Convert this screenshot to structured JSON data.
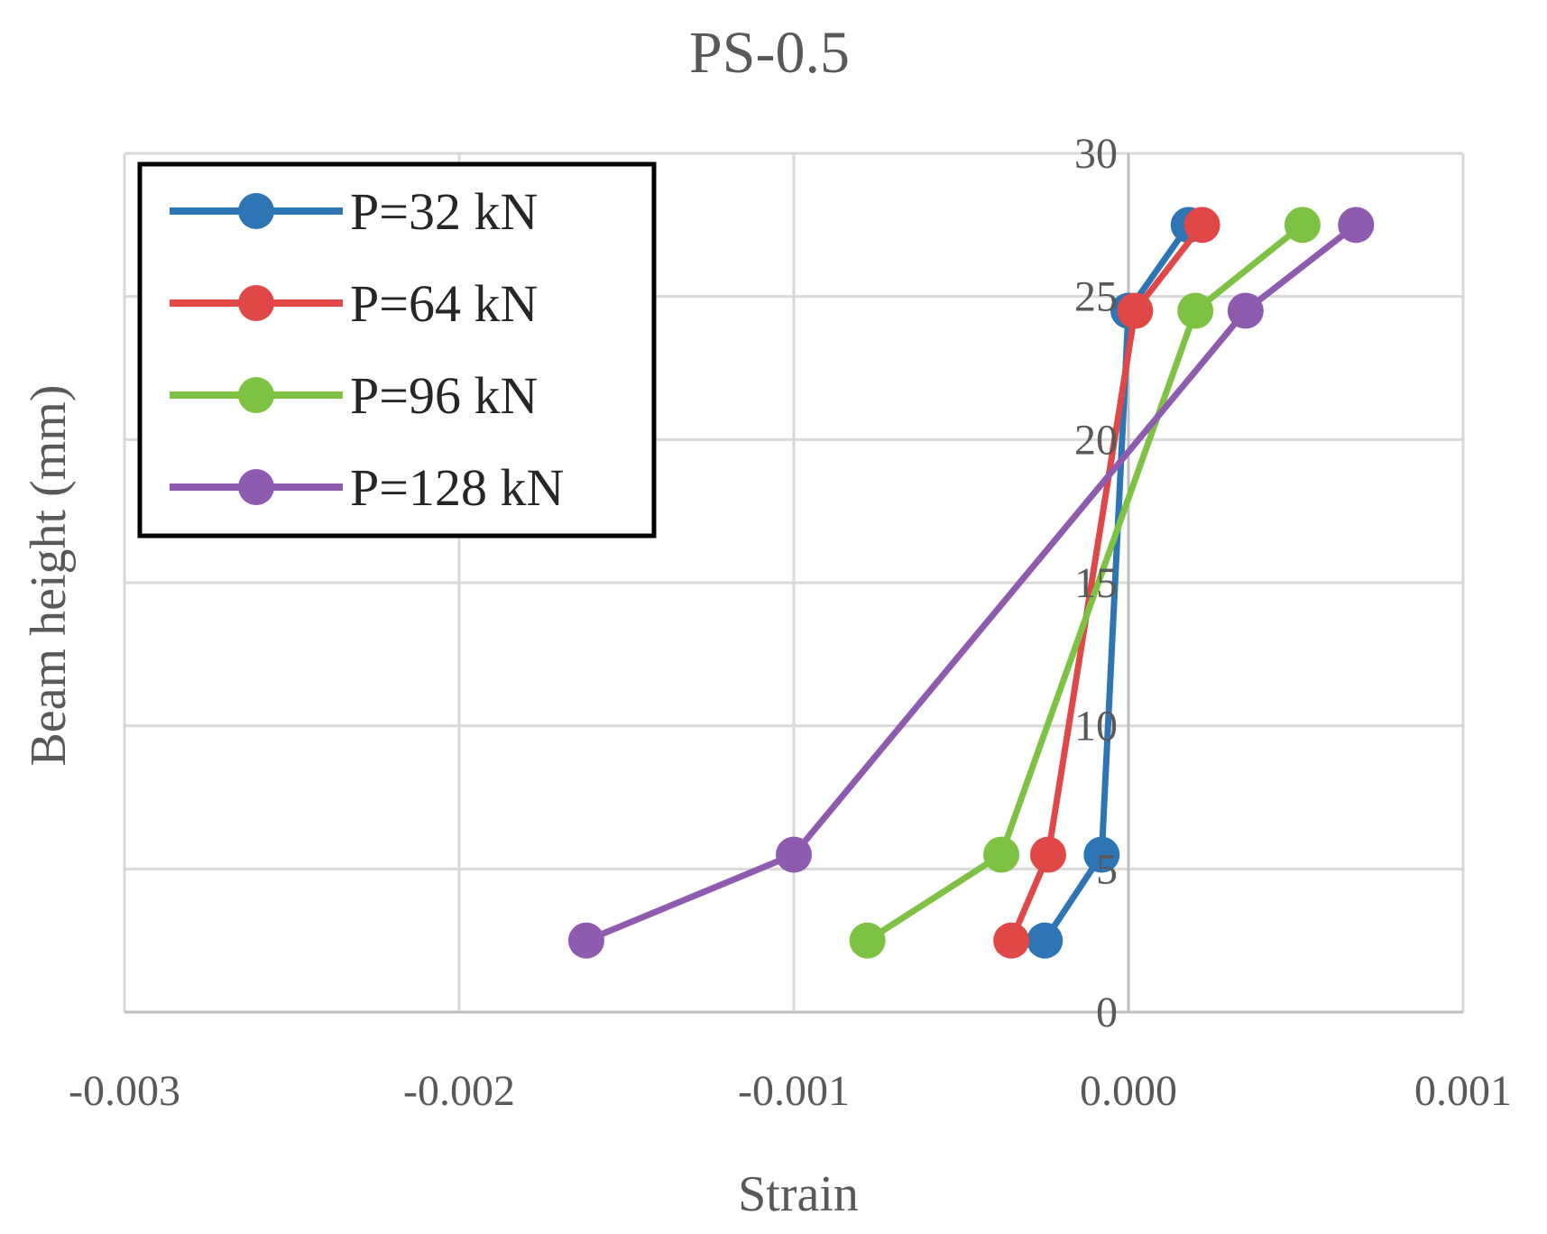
{
  "chart_data": {
    "type": "line",
    "title": "PS-0.5",
    "xlabel": "Strain",
    "ylabel": "Beam height (mm)",
    "xlim": [
      -0.003,
      0.001
    ],
    "ylim": [
      0,
      30
    ],
    "xticks": [
      -0.003,
      -0.002,
      -0.001,
      0.0,
      0.001
    ],
    "xtick_labels": [
      "-0.003",
      "-0.002",
      "-0.001",
      "0.000",
      "0.001"
    ],
    "yticks": [
      0,
      5,
      10,
      15,
      20,
      25,
      30
    ],
    "ytick_labels": [
      "0",
      "5",
      "10",
      "15",
      "20",
      "25",
      "30"
    ],
    "grid": true,
    "legend_position": "top-left",
    "series": [
      {
        "name": "P=32 kN",
        "color": "#2E75B6",
        "points": [
          [
            -0.00025,
            2.5
          ],
          [
            -8e-05,
            5.5
          ],
          [
            0.0,
            24.5
          ],
          [
            0.00018,
            27.5
          ]
        ]
      },
      {
        "name": "P=64 kN",
        "color": "#E04848",
        "points": [
          [
            -0.00035,
            2.5
          ],
          [
            -0.00024,
            5.5
          ],
          [
            2e-05,
            24.5
          ],
          [
            0.00022,
            27.5
          ]
        ]
      },
      {
        "name": "P=96 kN",
        "color": "#7DC242",
        "points": [
          [
            -0.00078,
            2.5
          ],
          [
            -0.00038,
            5.5
          ],
          [
            0.0002,
            24.5
          ],
          [
            0.00052,
            27.5
          ]
        ]
      },
      {
        "name": "P=128 kN",
        "color": "#8E5BAE",
        "points": [
          [
            -0.00162,
            2.5
          ],
          [
            -0.001,
            5.5
          ],
          [
            0.00035,
            24.5
          ],
          [
            0.00068,
            27.5
          ]
        ]
      }
    ]
  }
}
